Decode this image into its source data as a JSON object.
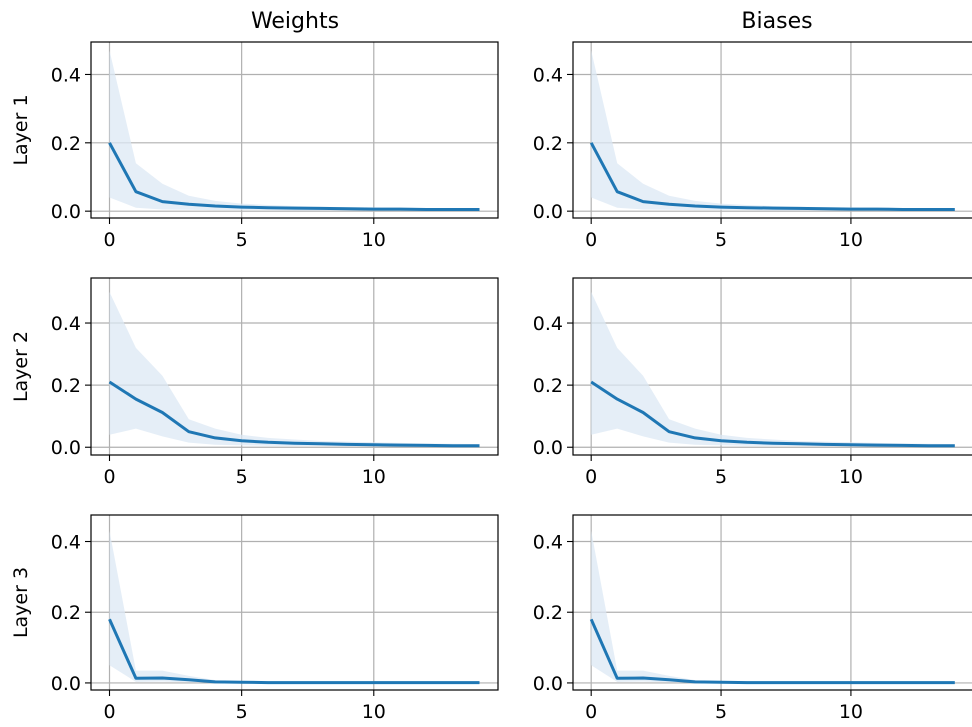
{
  "figure": {
    "column_titles": [
      "Weights",
      "Biases"
    ],
    "row_labels": [
      "Layer 1",
      "Layer 2",
      "Layer 3"
    ]
  },
  "colors": {
    "line": "#1f77b4",
    "band": "#dce8f4",
    "grid": "#b0b0b0"
  },
  "chart_data": [
    {
      "type": "line",
      "row": 1,
      "col": 1,
      "title": "Weights",
      "ylabel": "Layer 1",
      "x": [
        0,
        1,
        2,
        3,
        4,
        5,
        6,
        7,
        8,
        9,
        10,
        11,
        12,
        13,
        14
      ],
      "series": [
        {
          "values": [
            0.2,
            0.057,
            0.028,
            0.02,
            0.015,
            0.012,
            0.01,
            0.009,
            0.008,
            0.007,
            0.006,
            0.006,
            0.005,
            0.005,
            0.005
          ],
          "band_upper": [
            0.47,
            0.14,
            0.08,
            0.045,
            0.03,
            0.022,
            0.018,
            0.015,
            0.013,
            0.012,
            0.011,
            0.01,
            0.009,
            0.009,
            0.008
          ],
          "band_lower": [
            0.04,
            0.01,
            0.005,
            0.004,
            0.003,
            0.003,
            0.003,
            0.002,
            0.002,
            0.002,
            0.002,
            0.002,
            0.002,
            0.002,
            0.002
          ]
        }
      ],
      "xlim": [
        -0.7,
        14.7
      ],
      "ylim": [
        -0.02,
        0.495
      ],
      "xticks": [
        0,
        5,
        10
      ],
      "yticks": [
        0.0,
        0.2,
        0.4
      ],
      "xtick_labels": [
        "0",
        "5",
        "10"
      ],
      "ytick_labels": [
        "0.0",
        "0.2",
        "0.4"
      ],
      "grid": true
    },
    {
      "type": "line",
      "row": 1,
      "col": 2,
      "title": "Biases",
      "ylabel": "",
      "x": [
        0,
        1,
        2,
        3,
        4,
        5,
        6,
        7,
        8,
        9,
        10,
        11,
        12,
        13,
        14
      ],
      "series": [
        {
          "values": [
            0.2,
            0.057,
            0.028,
            0.02,
            0.015,
            0.012,
            0.01,
            0.009,
            0.008,
            0.007,
            0.006,
            0.006,
            0.005,
            0.005,
            0.005
          ],
          "band_upper": [
            0.47,
            0.14,
            0.08,
            0.045,
            0.03,
            0.022,
            0.018,
            0.015,
            0.013,
            0.012,
            0.011,
            0.01,
            0.009,
            0.009,
            0.008
          ],
          "band_lower": [
            0.04,
            0.01,
            0.005,
            0.004,
            0.003,
            0.003,
            0.003,
            0.002,
            0.002,
            0.002,
            0.002,
            0.002,
            0.002,
            0.002,
            0.002
          ]
        }
      ],
      "xlim": [
        -0.7,
        14.7
      ],
      "ylim": [
        -0.02,
        0.495
      ],
      "xticks": [
        0,
        5,
        10
      ],
      "yticks": [
        0.0,
        0.2,
        0.4
      ],
      "xtick_labels": [
        "0",
        "5",
        "10"
      ],
      "ytick_labels": [
        "0.0",
        "0.2",
        "0.4"
      ],
      "grid": true
    },
    {
      "type": "line",
      "row": 2,
      "col": 1,
      "title": "",
      "ylabel": "Layer 2",
      "x": [
        0,
        1,
        2,
        3,
        4,
        5,
        6,
        7,
        8,
        9,
        10,
        11,
        12,
        13,
        14
      ],
      "series": [
        {
          "values": [
            0.21,
            0.155,
            0.112,
            0.05,
            0.03,
            0.021,
            0.016,
            0.013,
            0.011,
            0.009,
            0.008,
            0.007,
            0.006,
            0.005,
            0.005
          ],
          "band_upper": [
            0.5,
            0.32,
            0.23,
            0.09,
            0.06,
            0.04,
            0.03,
            0.025,
            0.02,
            0.018,
            0.016,
            0.014,
            0.012,
            0.011,
            0.01
          ],
          "band_lower": [
            0.04,
            0.06,
            0.035,
            0.015,
            0.008,
            0.006,
            0.005,
            0.004,
            0.004,
            0.003,
            0.003,
            0.003,
            0.002,
            0.002,
            0.002
          ]
        }
      ],
      "xlim": [
        -0.7,
        14.7
      ],
      "ylim": [
        -0.025,
        0.545
      ],
      "xticks": [
        0,
        5,
        10
      ],
      "yticks": [
        0.0,
        0.2,
        0.4
      ],
      "xtick_labels": [
        "0",
        "5",
        "10"
      ],
      "ytick_labels": [
        "0.0",
        "0.2",
        "0.4"
      ],
      "grid": true
    },
    {
      "type": "line",
      "row": 2,
      "col": 2,
      "title": "",
      "ylabel": "",
      "x": [
        0,
        1,
        2,
        3,
        4,
        5,
        6,
        7,
        8,
        9,
        10,
        11,
        12,
        13,
        14
      ],
      "series": [
        {
          "values": [
            0.21,
            0.155,
            0.112,
            0.05,
            0.03,
            0.021,
            0.016,
            0.013,
            0.011,
            0.009,
            0.008,
            0.007,
            0.006,
            0.005,
            0.005
          ],
          "band_upper": [
            0.5,
            0.32,
            0.23,
            0.09,
            0.06,
            0.04,
            0.03,
            0.025,
            0.02,
            0.018,
            0.016,
            0.014,
            0.012,
            0.011,
            0.01
          ],
          "band_lower": [
            0.04,
            0.06,
            0.035,
            0.015,
            0.008,
            0.006,
            0.005,
            0.004,
            0.004,
            0.003,
            0.003,
            0.003,
            0.002,
            0.002,
            0.002
          ]
        }
      ],
      "xlim": [
        -0.7,
        14.7
      ],
      "ylim": [
        -0.025,
        0.545
      ],
      "xticks": [
        0,
        5,
        10
      ],
      "yticks": [
        0.0,
        0.2,
        0.4
      ],
      "xtick_labels": [
        "0",
        "5",
        "10"
      ],
      "ytick_labels": [
        "0.0",
        "0.2",
        "0.4"
      ],
      "grid": true
    },
    {
      "type": "line",
      "row": 3,
      "col": 1,
      "title": "",
      "ylabel": "Layer 3",
      "x": [
        0,
        1,
        2,
        3,
        4,
        5,
        6,
        7,
        8,
        9,
        10,
        11,
        12,
        13,
        14
      ],
      "series": [
        {
          "values": [
            0.18,
            0.013,
            0.014,
            0.009,
            0.003,
            0.002,
            0.001,
            0.001,
            0.001,
            0.001,
            0.001,
            0.001,
            0.001,
            0.001,
            0.001
          ],
          "band_upper": [
            0.43,
            0.035,
            0.035,
            0.02,
            0.008,
            0.005,
            0.003,
            0.002,
            0.002,
            0.002,
            0.002,
            0.002,
            0.002,
            0.002,
            0.002
          ],
          "band_lower": [
            0.05,
            0.003,
            0.004,
            0.002,
            0.001,
            0.0,
            0.0,
            0.0,
            0.0,
            0.0,
            0.0,
            0.0,
            0.0,
            0.0,
            0.0
          ]
        }
      ],
      "xlim": [
        -0.7,
        14.7
      ],
      "ylim": [
        -0.02,
        0.475
      ],
      "xticks": [
        0,
        5,
        10
      ],
      "yticks": [
        0.0,
        0.2,
        0.4
      ],
      "xtick_labels": [
        "0",
        "5",
        "10"
      ],
      "ytick_labels": [
        "0.0",
        "0.2",
        "0.4"
      ],
      "grid": true
    },
    {
      "type": "line",
      "row": 3,
      "col": 2,
      "title": "",
      "ylabel": "",
      "x": [
        0,
        1,
        2,
        3,
        4,
        5,
        6,
        7,
        8,
        9,
        10,
        11,
        12,
        13,
        14
      ],
      "series": [
        {
          "values": [
            0.18,
            0.013,
            0.014,
            0.009,
            0.003,
            0.002,
            0.001,
            0.001,
            0.001,
            0.001,
            0.001,
            0.001,
            0.001,
            0.001,
            0.001
          ],
          "band_upper": [
            0.43,
            0.035,
            0.035,
            0.02,
            0.008,
            0.005,
            0.003,
            0.002,
            0.002,
            0.002,
            0.002,
            0.002,
            0.002,
            0.002,
            0.002
          ],
          "band_lower": [
            0.05,
            0.003,
            0.004,
            0.002,
            0.001,
            0.0,
            0.0,
            0.0,
            0.0,
            0.0,
            0.0,
            0.0,
            0.0,
            0.0,
            0.0
          ]
        }
      ],
      "xlim": [
        -0.7,
        14.7
      ],
      "ylim": [
        -0.02,
        0.475
      ],
      "xticks": [
        0,
        5,
        10
      ],
      "yticks": [
        0.0,
        0.2,
        0.4
      ],
      "xtick_labels": [
        "0",
        "5",
        "10"
      ],
      "ytick_labels": [
        "0.0",
        "0.2",
        "0.4"
      ],
      "grid": true
    }
  ]
}
